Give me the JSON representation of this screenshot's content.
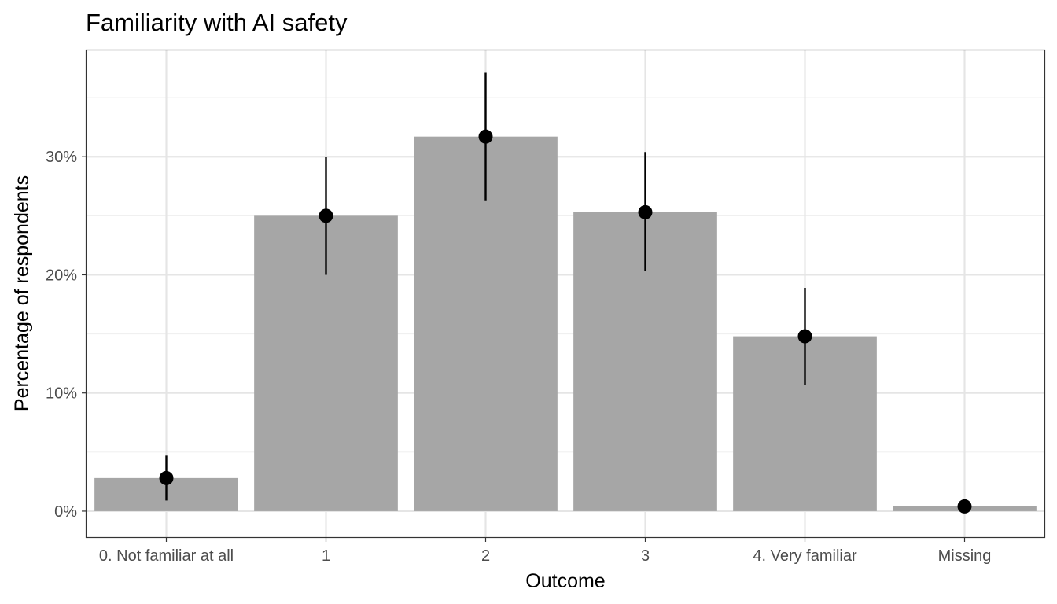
{
  "chart_data": {
    "type": "bar",
    "title": "Familiarity with AI safety",
    "xlabel": "Outcome",
    "ylabel": "Percentage of respondents",
    "categories": [
      "0. Not familiar at all",
      "1",
      "2",
      "3",
      "4. Very familiar",
      "Missing"
    ],
    "values": [
      2.8,
      25.0,
      31.7,
      25.3,
      14.8,
      0.4
    ],
    "error_low": [
      0.9,
      20.0,
      26.3,
      20.3,
      10.7,
      0.0
    ],
    "error_high": [
      4.7,
      30.0,
      37.1,
      30.4,
      18.9,
      0.8
    ],
    "ylim": [
      -2.2,
      39.0
    ],
    "yticks": [
      0,
      10,
      20,
      30
    ],
    "ytick_labels": [
      "0%",
      "10%",
      "20%",
      "30%"
    ],
    "grid": true,
    "colors": {
      "bar": "#a6a6a6",
      "point": "#000000",
      "grid_major": "#e5e5e5",
      "grid_minor": "#f0f0f0",
      "panel_border": "#333333"
    }
  }
}
